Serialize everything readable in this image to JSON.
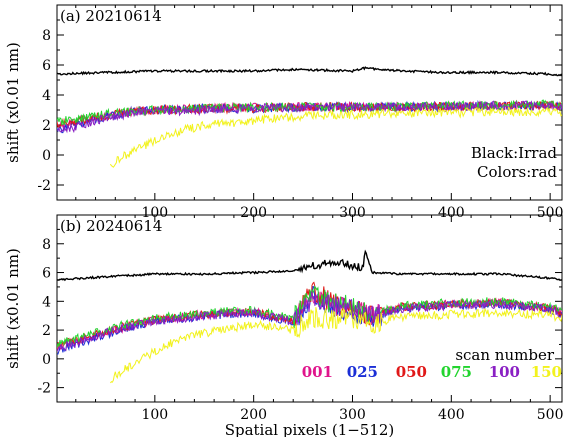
{
  "chart_data": [
    {
      "type": "line",
      "title": "(a) 20210614",
      "xlabel": "",
      "ylabel": "shift (x0.01 nm)",
      "xlim": [
        1,
        512
      ],
      "ylim": [
        -3,
        10
      ],
      "xticks": [
        "100",
        "200",
        "300",
        "400",
        "500"
      ],
      "yticks": [
        "-2",
        "0",
        "2",
        "4",
        "6",
        "8"
      ],
      "notes": [
        "Black:Irrad",
        "Colors:rad"
      ],
      "series": [
        {
          "id": "irrad",
          "color": "#000000",
          "x": [
            1,
            50,
            100,
            150,
            200,
            240,
            300,
            313,
            350,
            400,
            450,
            500,
            512
          ],
          "values": [
            5.4,
            5.5,
            5.6,
            5.6,
            5.6,
            5.7,
            5.6,
            5.8,
            5.6,
            5.5,
            5.5,
            5.4,
            5.3
          ]
        },
        {
          "id": "001",
          "color": "#e0148c",
          "x": [
            1,
            20,
            40,
            60,
            80,
            100,
            150,
            200,
            250,
            300,
            350,
            400,
            450,
            500,
            512
          ],
          "values": [
            2.0,
            2.2,
            2.5,
            2.7,
            2.9,
            3.0,
            3.1,
            3.2,
            3.2,
            3.2,
            3.2,
            3.2,
            3.3,
            3.3,
            3.3
          ]
        },
        {
          "id": "025",
          "color": "#1a2ed6",
          "x": [
            1,
            20,
            40,
            60,
            80,
            100,
            150,
            200,
            250,
            300,
            350,
            400,
            450,
            500,
            512
          ],
          "values": [
            1.7,
            2.0,
            2.4,
            2.7,
            2.9,
            3.0,
            3.1,
            3.1,
            3.2,
            3.2,
            3.2,
            3.2,
            3.3,
            3.3,
            3.3
          ]
        },
        {
          "id": "050",
          "color": "#e01818",
          "x": [
            1,
            20,
            40,
            60,
            80,
            100,
            150,
            200,
            250,
            300,
            350,
            400,
            450,
            500,
            512
          ],
          "values": [
            2.1,
            2.3,
            2.5,
            2.7,
            2.9,
            3.0,
            3.1,
            3.1,
            3.2,
            3.2,
            3.2,
            3.2,
            3.3,
            3.3,
            3.3
          ]
        },
        {
          "id": "075",
          "color": "#22d42e",
          "x": [
            1,
            20,
            40,
            60,
            80,
            100,
            150,
            200,
            250,
            300,
            350,
            400,
            450,
            500,
            512
          ],
          "values": [
            2.2,
            2.4,
            2.6,
            2.8,
            2.9,
            3.0,
            3.1,
            3.2,
            3.2,
            3.2,
            3.2,
            3.3,
            3.3,
            3.4,
            3.4
          ]
        },
        {
          "id": "100",
          "color": "#8a20c4",
          "x": [
            1,
            20,
            40,
            60,
            80,
            100,
            150,
            200,
            250,
            300,
            350,
            400,
            450,
            500,
            512
          ],
          "values": [
            1.5,
            1.9,
            2.3,
            2.6,
            2.8,
            2.9,
            3.0,
            3.1,
            3.2,
            3.2,
            3.2,
            3.2,
            3.3,
            3.3,
            3.3
          ]
        },
        {
          "id": "150",
          "color": "#f2f21e",
          "x": [
            55,
            60,
            80,
            100,
            120,
            150,
            200,
            250,
            300,
            350,
            400,
            450,
            500,
            512
          ],
          "values": [
            -0.8,
            -0.4,
            0.3,
            1.0,
            1.5,
            2.0,
            2.3,
            2.6,
            2.7,
            2.8,
            2.8,
            2.9,
            2.9,
            2.9
          ]
        }
      ]
    },
    {
      "type": "line",
      "title": "(b) 20240614",
      "xlabel": "Spatial pixels (1−512)",
      "ylabel": "shift (x0.01 nm)",
      "xlim": [
        1,
        512
      ],
      "ylim": [
        -3,
        10
      ],
      "xticks": [
        "100",
        "200",
        "300",
        "400",
        "500"
      ],
      "yticks": [
        "-2",
        "0",
        "2",
        "4",
        "6",
        "8"
      ],
      "legend_title": "scan number",
      "legend": [
        "001",
        "025",
        "050",
        "075",
        "100",
        "150"
      ],
      "series": [
        {
          "id": "irrad",
          "color": "#000000",
          "x": [
            1,
            50,
            100,
            150,
            200,
            240,
            260,
            280,
            300,
            310,
            313,
            320,
            350,
            400,
            450,
            500,
            512
          ],
          "values": [
            5.5,
            5.7,
            5.9,
            5.9,
            6.0,
            6.1,
            6.5,
            6.7,
            6.5,
            6.3,
            7.5,
            6.0,
            5.9,
            5.9,
            5.9,
            5.6,
            5.5
          ]
        },
        {
          "id": "001",
          "color": "#e0148c",
          "x": [
            1,
            20,
            40,
            60,
            80,
            100,
            150,
            200,
            240,
            260,
            280,
            300,
            320,
            350,
            400,
            450,
            500,
            512
          ],
          "values": [
            0.8,
            1.2,
            1.6,
            2.0,
            2.4,
            2.7,
            3.1,
            3.3,
            2.6,
            4.5,
            3.8,
            3.4,
            3.0,
            3.6,
            3.8,
            3.9,
            3.5,
            3.2
          ]
        },
        {
          "id": "025",
          "color": "#1a2ed6",
          "x": [
            1,
            20,
            40,
            60,
            80,
            100,
            150,
            200,
            240,
            260,
            280,
            300,
            320,
            350,
            400,
            450,
            500,
            512
          ],
          "values": [
            0.6,
            1.0,
            1.5,
            1.9,
            2.3,
            2.6,
            3.0,
            3.2,
            2.5,
            4.3,
            3.6,
            3.3,
            2.9,
            3.5,
            3.7,
            3.8,
            3.4,
            3.1
          ]
        },
        {
          "id": "050",
          "color": "#e01818",
          "x": [
            1,
            20,
            40,
            60,
            80,
            100,
            150,
            200,
            240,
            260,
            280,
            300,
            320,
            350,
            400,
            450,
            500,
            512
          ],
          "values": [
            0.9,
            1.3,
            1.7,
            2.1,
            2.4,
            2.7,
            3.1,
            3.3,
            2.7,
            4.8,
            3.9,
            3.5,
            3.0,
            3.6,
            3.8,
            3.9,
            3.5,
            3.2
          ]
        },
        {
          "id": "075",
          "color": "#22d42e",
          "x": [
            1,
            20,
            40,
            60,
            80,
            100,
            150,
            200,
            240,
            260,
            280,
            300,
            320,
            350,
            400,
            450,
            500,
            512
          ],
          "values": [
            1.0,
            1.4,
            1.8,
            2.2,
            2.5,
            2.8,
            3.2,
            3.4,
            2.8,
            4.4,
            3.9,
            3.6,
            3.1,
            3.7,
            3.9,
            4.0,
            3.6,
            3.3
          ]
        },
        {
          "id": "100",
          "color": "#8a20c4",
          "x": [
            1,
            20,
            40,
            60,
            80,
            100,
            150,
            200,
            240,
            260,
            280,
            300,
            320,
            350,
            400,
            450,
            500,
            512
          ],
          "values": [
            0.7,
            1.1,
            1.6,
            2.0,
            2.3,
            2.6,
            3.0,
            3.2,
            2.6,
            4.2,
            3.7,
            3.4,
            3.0,
            3.5,
            3.7,
            3.8,
            3.4,
            3.1
          ]
        },
        {
          "id": "150",
          "color": "#f2f21e",
          "x": [
            55,
            60,
            80,
            100,
            120,
            150,
            200,
            240,
            260,
            280,
            300,
            320,
            350,
            400,
            450,
            500,
            512
          ],
          "values": [
            -1.5,
            -1.1,
            -0.3,
            0.5,
            1.2,
            1.8,
            2.4,
            2.0,
            2.9,
            2.8,
            2.7,
            2.5,
            2.9,
            3.1,
            3.2,
            3.0,
            2.8
          ]
        }
      ]
    }
  ]
}
